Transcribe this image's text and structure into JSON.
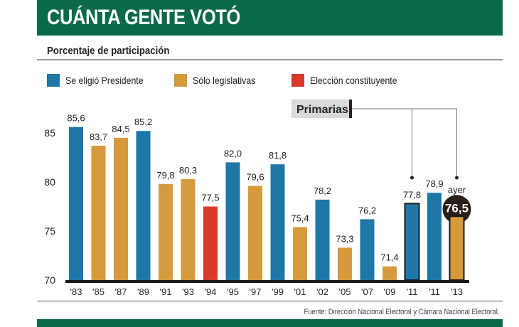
{
  "header": {
    "title": "CUÁNTA GENTE VOTÓ"
  },
  "subtitle": "Porcentaje de participación",
  "legend": [
    {
      "label": "Se eligió Presidente",
      "color": "#1f77a8"
    },
    {
      "label": "Sólo legislativas",
      "color": "#d49a3c"
    },
    {
      "label": "Elección constituyente",
      "color": "#d8392b"
    }
  ],
  "source": "Fuente: Dirección Nacional Electoral y Cámara Nacional Electoral.",
  "chart_data": {
    "type": "bar",
    "categories": [
      "'83",
      "'85",
      "'87",
      "'89",
      "'91",
      "'93",
      "'94",
      "'95",
      "'97",
      "'99",
      "'01",
      "'02",
      "'05",
      "'07",
      "'09",
      "'11",
      "'11",
      "'13"
    ],
    "values": [
      85.6,
      83.7,
      84.5,
      85.2,
      79.8,
      80.3,
      77.5,
      82.0,
      79.6,
      81.8,
      75.4,
      78.2,
      73.3,
      76.2,
      71.4,
      77.8,
      78.9,
      76.5
    ],
    "value_labels": [
      "85,6",
      "83,7",
      "84,5",
      "85,2",
      "79,8",
      "80,3",
      "77,5",
      "82,0",
      "79,6",
      "81,8",
      "75,4",
      "78,2",
      "73,3",
      "76,2",
      "71,4",
      "77,8",
      "78,9",
      "76,5"
    ],
    "types": [
      "Se eligió Presidente",
      "Sólo legislativas",
      "Sólo legislativas",
      "Se eligió Presidente",
      "Sólo legislativas",
      "Sólo legislativas",
      "Elección constituyente",
      "Se eligió Presidente",
      "Sólo legislativas",
      "Se eligió Presidente",
      "Sólo legislativas",
      "Se eligió Presidente",
      "Sólo legislativas",
      "Se eligió Presidente",
      "Sólo legislativas",
      "Se eligió Presidente",
      "Se eligió Presidente",
      "Sólo legislativas"
    ],
    "primarias": [
      false,
      false,
      false,
      false,
      false,
      false,
      false,
      false,
      false,
      false,
      false,
      false,
      false,
      false,
      false,
      true,
      false,
      true
    ],
    "ylim": [
      70,
      87
    ],
    "yticks": [
      70,
      75,
      80,
      85
    ],
    "annotation_label": "Primarias",
    "highlight_note": "ayer",
    "grid": false
  }
}
